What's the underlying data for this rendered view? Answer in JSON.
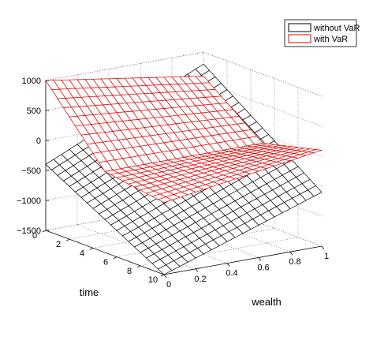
{
  "chart_data": {
    "type": "surface",
    "title": "",
    "xlabel": "wealth",
    "ylabel": "time",
    "zlabel": "",
    "xlim": [
      0,
      1
    ],
    "ylim": [
      0,
      10
    ],
    "zlim": [
      -1500,
      1000
    ],
    "xticks": [
      "0",
      "0.2",
      "0.4",
      "0.6",
      "0.8",
      "1"
    ],
    "yticks": [
      "0",
      "2",
      "4",
      "6",
      "8",
      "10"
    ],
    "zticks": [
      "1000",
      "500",
      "0",
      "−500",
      "−1000",
      "−1500"
    ],
    "grid": true,
    "legend_position": "top-right",
    "x": [
      0,
      0.05,
      0.1,
      0.15,
      0.2,
      0.25,
      0.3,
      0.35,
      0.4,
      0.45,
      0.5,
      0.55,
      0.6,
      0.65,
      0.7,
      0.75,
      0.8,
      0.85,
      0.9,
      0.95,
      1
    ],
    "y": [
      0,
      0.5,
      1,
      1.5,
      2,
      2.5,
      3,
      3.5,
      4,
      4.5,
      5,
      5.5,
      6,
      6.5,
      7,
      7.5,
      8,
      8.5,
      9,
      9.5,
      10
    ],
    "series": [
      {
        "name": "without VaR",
        "color": "#000000",
        "z_at_y0": [
          -400,
          -340,
          -280,
          -220,
          -160,
          -100,
          -40,
          20,
          80,
          140,
          200,
          260,
          320,
          380,
          440,
          500,
          560,
          620,
          680,
          740,
          800
        ],
        "z_at_y10": [
          -1500,
          -1455,
          -1410,
          -1365,
          -1320,
          -1275,
          -1230,
          -1185,
          -1140,
          -1095,
          -1050,
          -1005,
          -960,
          -915,
          -870,
          -825,
          -780,
          -735,
          -690,
          -645,
          -600
        ]
      },
      {
        "name": "with VaR",
        "color": "#e00000",
        "z_at_y0": [
          1000,
          980,
          960,
          940,
          920,
          900,
          880,
          860,
          840,
          820,
          800,
          780,
          760,
          740,
          720,
          700,
          680,
          660,
          640,
          620,
          600
        ],
        "z_at_y10": [
          -300,
          -280,
          -260,
          -240,
          -220,
          -200,
          -180,
          -160,
          -140,
          -120,
          -100,
          -80,
          -60,
          -40,
          -20,
          0,
          20,
          40,
          60,
          80,
          100
        ],
        "crease_y": 5,
        "z_at_crease": [
          -150,
          -150,
          -150,
          -150,
          -150,
          -150,
          -150,
          -150,
          -150,
          -150,
          -150,
          -150,
          -150,
          -150,
          -150,
          -150,
          -150,
          -150,
          -150,
          -150,
          -150
        ]
      }
    ]
  },
  "legend": {
    "items": [
      {
        "label": "without VaR",
        "color": "#000000"
      },
      {
        "label": "with VaR",
        "color": "#e00000"
      }
    ]
  }
}
